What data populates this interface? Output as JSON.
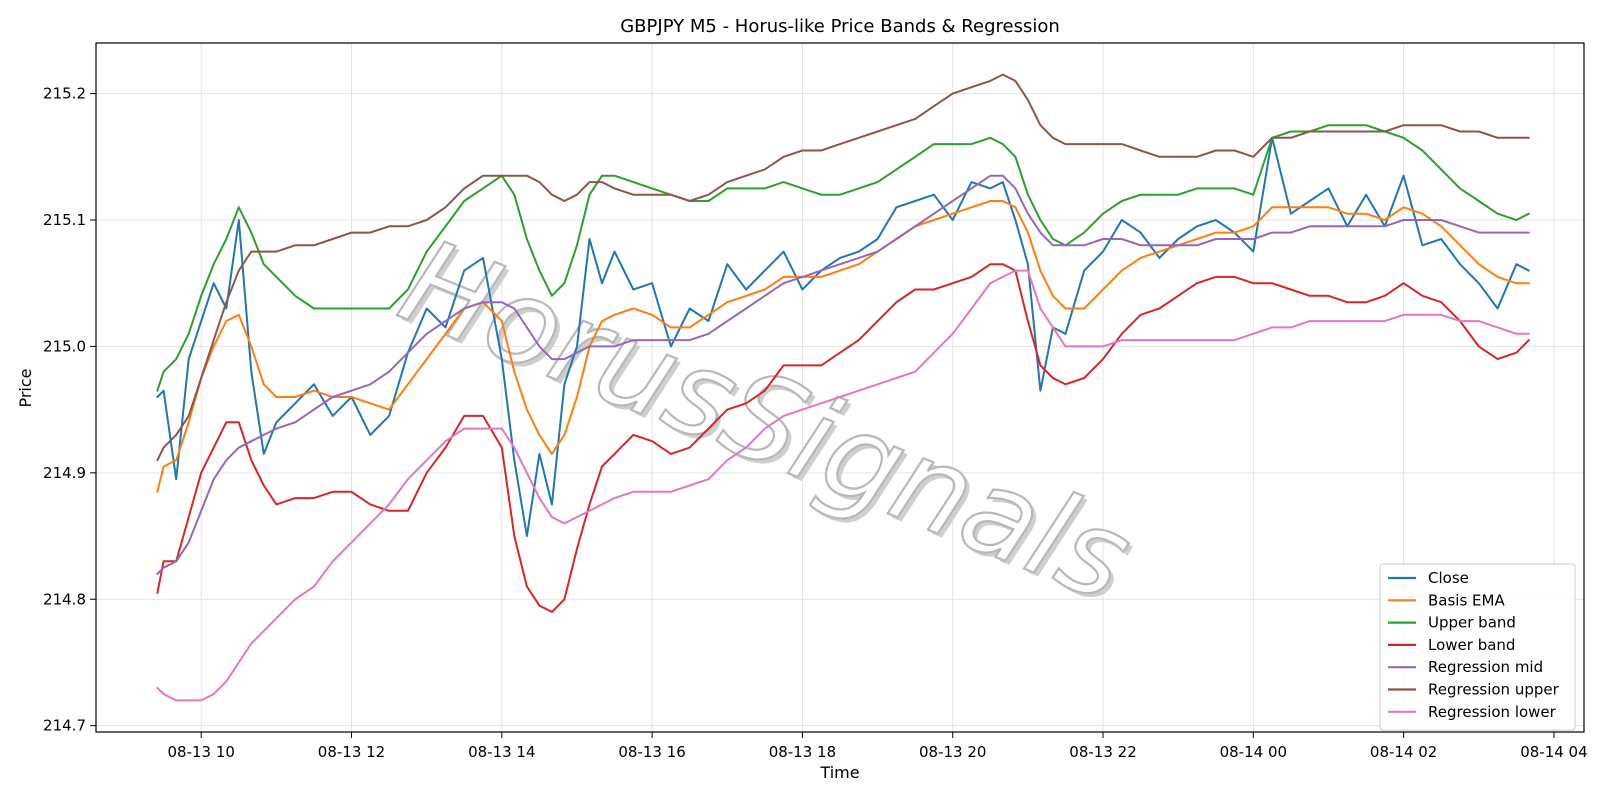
{
  "chart_data": {
    "type": "line",
    "title": "GBPJPY M5 - Horus-like Price Bands & Regression",
    "xlabel": "Time",
    "ylabel": "Price",
    "xlim": [
      "2025-08-13 08:36",
      "2025-08-14 04:24"
    ],
    "ylim": [
      214.695,
      215.24
    ],
    "grid": true,
    "legend_position": "lower-right",
    "watermark": "HorusSignals",
    "x_ticks": [
      "08-13 10",
      "08-13 12",
      "08-13 14",
      "08-13 16",
      "08-13 18",
      "08-13 20",
      "08-13 22",
      "08-14 00",
      "08-14 02",
      "08-14 04"
    ],
    "x_tick_times": [
      "2025-08-13 10:00",
      "2025-08-13 12:00",
      "2025-08-13 14:00",
      "2025-08-13 16:00",
      "2025-08-13 18:00",
      "2025-08-13 20:00",
      "2025-08-13 22:00",
      "2025-08-14 00:00",
      "2025-08-14 02:00",
      "2025-08-14 04:00"
    ],
    "y_ticks": [
      "214.7",
      "214.8",
      "214.9",
      "215.0",
      "215.1",
      "215.2"
    ],
    "y_tick_values": [
      214.7,
      214.8,
      214.9,
      215.0,
      215.1,
      215.2
    ],
    "x": [
      "2025-08-13 09:25",
      "2025-08-13 09:30",
      "2025-08-13 09:40",
      "2025-08-13 09:50",
      "2025-08-13 10:00",
      "2025-08-13 10:10",
      "2025-08-13 10:20",
      "2025-08-13 10:30",
      "2025-08-13 10:40",
      "2025-08-13 10:50",
      "2025-08-13 11:00",
      "2025-08-13 11:15",
      "2025-08-13 11:30",
      "2025-08-13 11:45",
      "2025-08-13 12:00",
      "2025-08-13 12:15",
      "2025-08-13 12:30",
      "2025-08-13 12:45",
      "2025-08-13 13:00",
      "2025-08-13 13:15",
      "2025-08-13 13:30",
      "2025-08-13 13:45",
      "2025-08-13 14:00",
      "2025-08-13 14:10",
      "2025-08-13 14:20",
      "2025-08-13 14:30",
      "2025-08-13 14:40",
      "2025-08-13 14:50",
      "2025-08-13 15:00",
      "2025-08-13 15:10",
      "2025-08-13 15:20",
      "2025-08-13 15:30",
      "2025-08-13 15:45",
      "2025-08-13 16:00",
      "2025-08-13 16:15",
      "2025-08-13 16:30",
      "2025-08-13 16:45",
      "2025-08-13 17:00",
      "2025-08-13 17:15",
      "2025-08-13 17:30",
      "2025-08-13 17:45",
      "2025-08-13 18:00",
      "2025-08-13 18:15",
      "2025-08-13 18:30",
      "2025-08-13 18:45",
      "2025-08-13 19:00",
      "2025-08-13 19:15",
      "2025-08-13 19:30",
      "2025-08-13 19:45",
      "2025-08-13 20:00",
      "2025-08-13 20:15",
      "2025-08-13 20:30",
      "2025-08-13 20:40",
      "2025-08-13 20:50",
      "2025-08-13 21:00",
      "2025-08-13 21:10",
      "2025-08-13 21:20",
      "2025-08-13 21:30",
      "2025-08-13 21:45",
      "2025-08-13 22:00",
      "2025-08-13 22:15",
      "2025-08-13 22:30",
      "2025-08-13 22:45",
      "2025-08-13 23:00",
      "2025-08-13 23:15",
      "2025-08-13 23:30",
      "2025-08-13 23:45",
      "2025-08-14 00:00",
      "2025-08-14 00:15",
      "2025-08-14 00:30",
      "2025-08-14 00:45",
      "2025-08-14 01:00",
      "2025-08-14 01:15",
      "2025-08-14 01:30",
      "2025-08-14 01:45",
      "2025-08-14 02:00",
      "2025-08-14 02:15",
      "2025-08-14 02:30",
      "2025-08-14 02:45",
      "2025-08-14 03:00",
      "2025-08-14 03:15",
      "2025-08-14 03:30",
      "2025-08-14 03:40"
    ],
    "series": [
      {
        "name": "Close",
        "color": "#1f77b4",
        "values": [
          214.96,
          214.965,
          214.895,
          214.99,
          215.02,
          215.05,
          215.03,
          215.1,
          214.98,
          214.915,
          214.94,
          214.955,
          214.97,
          214.945,
          214.96,
          214.93,
          214.945,
          214.995,
          215.03,
          215.015,
          215.06,
          215.07,
          214.99,
          214.91,
          214.85,
          214.915,
          214.875,
          214.97,
          215.0,
          215.085,
          215.05,
          215.075,
          215.045,
          215.05,
          215.0,
          215.03,
          215.02,
          215.065,
          215.045,
          215.06,
          215.075,
          215.045,
          215.06,
          215.07,
          215.075,
          215.085,
          215.11,
          215.115,
          215.12,
          215.1,
          215.13,
          215.125,
          215.13,
          215.1,
          215.065,
          214.965,
          215.015,
          215.01,
          215.06,
          215.075,
          215.1,
          215.09,
          215.07,
          215.085,
          215.095,
          215.1,
          215.09,
          215.075,
          215.165,
          215.105,
          215.115,
          215.125,
          215.095,
          215.12,
          215.095,
          215.135,
          215.08,
          215.085,
          215.065,
          215.05,
          215.03,
          215.065,
          215.06
        ]
      },
      {
        "name": "Basis EMA",
        "color": "#ff7f0e",
        "values": [
          214.885,
          214.905,
          214.91,
          214.94,
          214.975,
          215.0,
          215.02,
          215.025,
          215.0,
          214.97,
          214.96,
          214.96,
          214.965,
          214.96,
          214.96,
          214.955,
          214.95,
          214.97,
          214.99,
          215.01,
          215.03,
          215.035,
          215.02,
          214.98,
          214.95,
          214.93,
          214.915,
          214.93,
          214.96,
          215.0,
          215.02,
          215.025,
          215.03,
          215.025,
          215.015,
          215.015,
          215.025,
          215.035,
          215.04,
          215.045,
          215.055,
          215.055,
          215.055,
          215.06,
          215.065,
          215.075,
          215.085,
          215.095,
          215.1,
          215.105,
          215.11,
          215.115,
          215.115,
          215.11,
          215.09,
          215.06,
          215.04,
          215.03,
          215.03,
          215.045,
          215.06,
          215.07,
          215.075,
          215.08,
          215.085,
          215.09,
          215.09,
          215.095,
          215.11,
          215.11,
          215.11,
          215.11,
          215.105,
          215.105,
          215.1,
          215.11,
          215.105,
          215.095,
          215.08,
          215.065,
          215.055,
          215.05,
          215.05
        ]
      },
      {
        "name": "Upper band",
        "color": "#2ca02c",
        "values": [
          214.965,
          214.98,
          214.99,
          215.01,
          215.04,
          215.065,
          215.085,
          215.11,
          215.09,
          215.065,
          215.055,
          215.04,
          215.03,
          215.03,
          215.03,
          215.03,
          215.03,
          215.045,
          215.075,
          215.095,
          215.115,
          215.125,
          215.135,
          215.12,
          215.085,
          215.06,
          215.04,
          215.05,
          215.08,
          215.12,
          215.135,
          215.135,
          215.13,
          215.125,
          215.12,
          215.115,
          215.115,
          215.125,
          215.125,
          215.125,
          215.13,
          215.125,
          215.12,
          215.12,
          215.125,
          215.13,
          215.14,
          215.15,
          215.16,
          215.16,
          215.16,
          215.165,
          215.16,
          215.15,
          215.12,
          215.1,
          215.085,
          215.08,
          215.09,
          215.105,
          215.115,
          215.12,
          215.12,
          215.12,
          215.125,
          215.125,
          215.125,
          215.12,
          215.165,
          215.17,
          215.17,
          215.175,
          215.175,
          215.175,
          215.17,
          215.165,
          215.155,
          215.14,
          215.125,
          215.115,
          215.105,
          215.1,
          215.105
        ]
      },
      {
        "name": "Lower band",
        "color": "#d62728",
        "values": [
          214.805,
          214.83,
          214.83,
          214.865,
          214.9,
          214.92,
          214.94,
          214.94,
          214.91,
          214.89,
          214.875,
          214.88,
          214.88,
          214.885,
          214.885,
          214.875,
          214.87,
          214.87,
          214.9,
          214.92,
          214.945,
          214.945,
          214.92,
          214.85,
          214.81,
          214.795,
          214.79,
          214.8,
          214.84,
          214.875,
          214.905,
          214.915,
          214.93,
          214.925,
          214.915,
          214.92,
          214.935,
          214.95,
          214.955,
          214.965,
          214.985,
          214.985,
          214.985,
          214.995,
          215.005,
          215.02,
          215.035,
          215.045,
          215.045,
          215.05,
          215.055,
          215.065,
          215.065,
          215.06,
          215.02,
          214.985,
          214.975,
          214.97,
          214.975,
          214.99,
          215.01,
          215.025,
          215.03,
          215.04,
          215.05,
          215.055,
          215.055,
          215.05,
          215.05,
          215.045,
          215.04,
          215.04,
          215.035,
          215.035,
          215.04,
          215.05,
          215.04,
          215.035,
          215.02,
          215.0,
          214.99,
          214.995,
          215.005
        ]
      },
      {
        "name": "Regression mid",
        "color": "#9467bd",
        "values": [
          214.82,
          214.825,
          214.83,
          214.845,
          214.87,
          214.895,
          214.91,
          214.92,
          214.925,
          214.93,
          214.935,
          214.94,
          214.95,
          214.96,
          214.965,
          214.97,
          214.98,
          214.995,
          215.01,
          215.02,
          215.03,
          215.035,
          215.035,
          215.03,
          215.015,
          215.0,
          214.99,
          214.99,
          214.995,
          215.0,
          215.0,
          215.0,
          215.005,
          215.005,
          215.005,
          215.005,
          215.01,
          215.02,
          215.03,
          215.04,
          215.05,
          215.055,
          215.06,
          215.065,
          215.07,
          215.075,
          215.085,
          215.095,
          215.105,
          215.115,
          215.125,
          215.135,
          215.135,
          215.125,
          215.105,
          215.09,
          215.08,
          215.08,
          215.08,
          215.085,
          215.085,
          215.08,
          215.08,
          215.08,
          215.08,
          215.085,
          215.085,
          215.085,
          215.09,
          215.09,
          215.095,
          215.095,
          215.095,
          215.095,
          215.095,
          215.1,
          215.1,
          215.1,
          215.095,
          215.09,
          215.09,
          215.09,
          215.09
        ]
      },
      {
        "name": "Regression upper",
        "color": "#8c564b",
        "values": [
          214.91,
          214.92,
          214.93,
          214.945,
          214.975,
          215.005,
          215.035,
          215.06,
          215.075,
          215.075,
          215.075,
          215.08,
          215.08,
          215.085,
          215.09,
          215.09,
          215.095,
          215.095,
          215.1,
          215.11,
          215.125,
          215.135,
          215.135,
          215.135,
          215.135,
          215.13,
          215.12,
          215.115,
          215.12,
          215.13,
          215.13,
          215.125,
          215.12,
          215.12,
          215.12,
          215.115,
          215.12,
          215.13,
          215.135,
          215.14,
          215.15,
          215.155,
          215.155,
          215.16,
          215.165,
          215.17,
          215.175,
          215.18,
          215.19,
          215.2,
          215.205,
          215.21,
          215.215,
          215.21,
          215.195,
          215.175,
          215.165,
          215.16,
          215.16,
          215.16,
          215.16,
          215.155,
          215.15,
          215.15,
          215.15,
          215.155,
          215.155,
          215.15,
          215.165,
          215.165,
          215.17,
          215.17,
          215.17,
          215.17,
          215.17,
          215.175,
          215.175,
          215.175,
          215.17,
          215.17,
          215.165,
          215.165,
          215.165
        ]
      },
      {
        "name": "Regression lower",
        "color": "#e377c2",
        "values": [
          214.73,
          214.725,
          214.72,
          214.72,
          214.72,
          214.725,
          214.735,
          214.75,
          214.765,
          214.775,
          214.785,
          214.8,
          214.81,
          214.83,
          214.845,
          214.86,
          214.875,
          214.895,
          214.91,
          214.925,
          214.935,
          214.935,
          214.935,
          214.92,
          214.9,
          214.88,
          214.865,
          214.86,
          214.865,
          214.87,
          214.875,
          214.88,
          214.885,
          214.885,
          214.885,
          214.89,
          214.895,
          214.91,
          214.92,
          214.935,
          214.945,
          214.95,
          214.955,
          214.96,
          214.965,
          214.97,
          214.975,
          214.98,
          214.995,
          215.01,
          215.03,
          215.05,
          215.055,
          215.06,
          215.06,
          215.03,
          215.015,
          215.0,
          215.0,
          215.0,
          215.005,
          215.005,
          215.005,
          215.005,
          215.005,
          215.005,
          215.005,
          215.01,
          215.015,
          215.015,
          215.02,
          215.02,
          215.02,
          215.02,
          215.02,
          215.025,
          215.025,
          215.025,
          215.02,
          215.02,
          215.015,
          215.01,
          215.01
        ]
      }
    ]
  }
}
